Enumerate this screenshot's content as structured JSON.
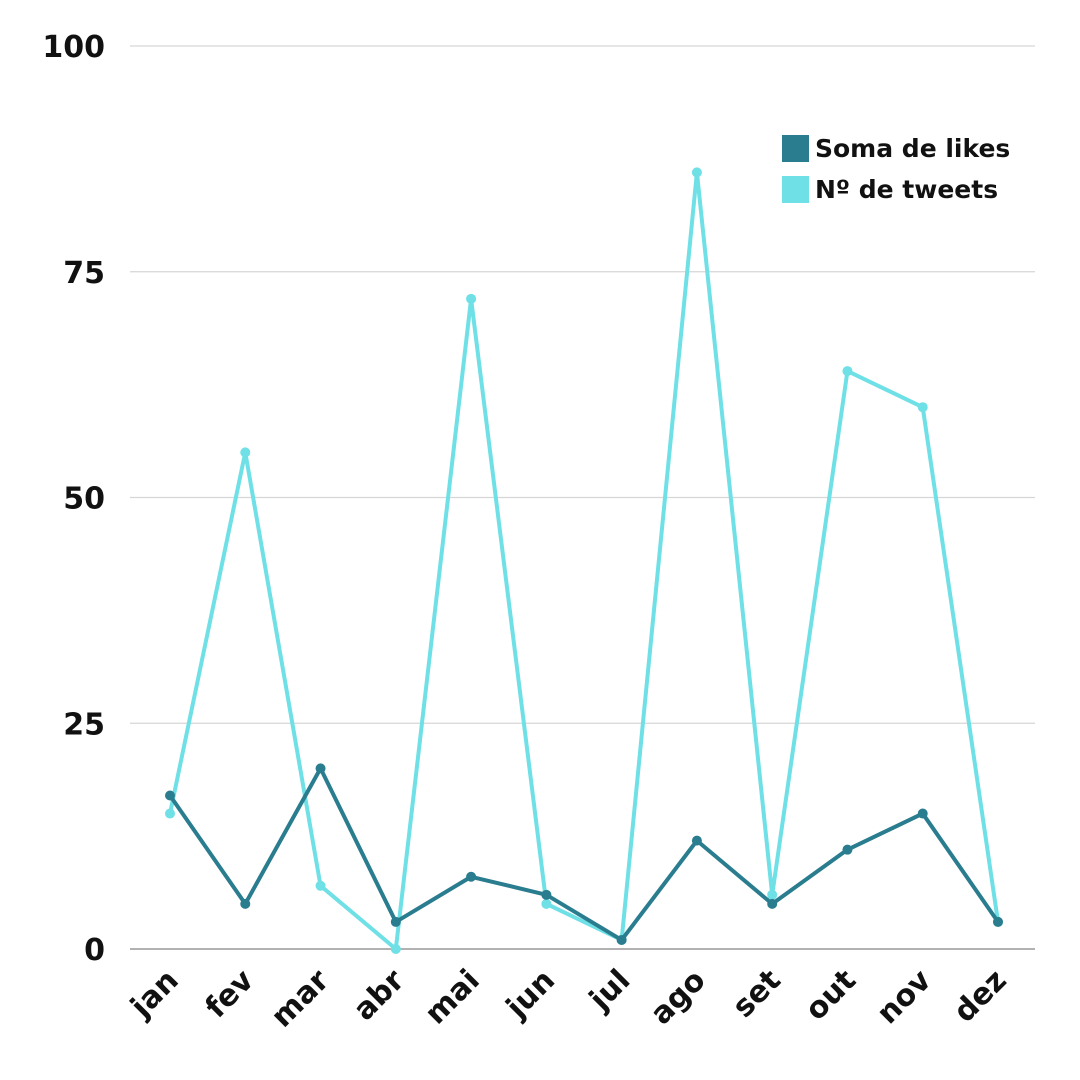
{
  "chart_data": {
    "type": "line",
    "title": "",
    "xlabel": "",
    "ylabel": "",
    "categories": [
      "jan",
      "fev",
      "mar",
      "abr",
      "mai",
      "jun",
      "jul",
      "ago",
      "set",
      "out",
      "nov",
      "dez"
    ],
    "ylim": [
      0,
      100
    ],
    "yticks": [
      "0",
      "25",
      "50",
      "75",
      "100"
    ],
    "grid": true,
    "legend_position": "top-right",
    "series": [
      {
        "name": "Soma de likes",
        "color": "#2a7d8f",
        "values": [
          17,
          5,
          20,
          3,
          8,
          6,
          1,
          12,
          5,
          11,
          15,
          3
        ]
      },
      {
        "name": "Nº de tweets",
        "color": "#6ee0e6",
        "values": [
          15,
          55,
          7,
          0,
          72,
          5,
          1,
          86,
          6,
          64,
          60,
          3
        ]
      }
    ]
  }
}
